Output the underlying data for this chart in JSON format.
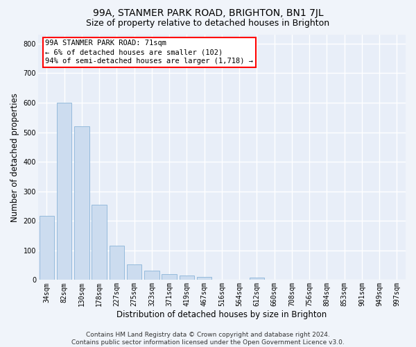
{
  "title": "99A, STANMER PARK ROAD, BRIGHTON, BN1 7JL",
  "subtitle": "Size of property relative to detached houses in Brighton",
  "xlabel": "Distribution of detached houses by size in Brighton",
  "ylabel": "Number of detached properties",
  "bar_color": "#ccdcef",
  "bar_edge_color": "#8ab4d8",
  "background_color": "#e8eef8",
  "grid_color": "#d0d8e8",
  "bins": [
    "34sqm",
    "82sqm",
    "130sqm",
    "178sqm",
    "227sqm",
    "275sqm",
    "323sqm",
    "371sqm",
    "419sqm",
    "467sqm",
    "516sqm",
    "564sqm",
    "612sqm",
    "660sqm",
    "708sqm",
    "756sqm",
    "804sqm",
    "853sqm",
    "901sqm",
    "949sqm",
    "997sqm"
  ],
  "values": [
    218,
    600,
    520,
    255,
    115,
    53,
    31,
    20,
    16,
    10,
    0,
    0,
    9,
    0,
    0,
    0,
    0,
    0,
    0,
    0,
    0
  ],
  "ylim": [
    0,
    830
  ],
  "yticks": [
    0,
    100,
    200,
    300,
    400,
    500,
    600,
    700,
    800
  ],
  "annotation_text": "99A STANMER PARK ROAD: 71sqm\n← 6% of detached houses are smaller (102)\n94% of semi-detached houses are larger (1,718) →",
  "property_sqm": 71,
  "footnote": "Contains HM Land Registry data © Crown copyright and database right 2024.\nContains public sector information licensed under the Open Government Licence v3.0.",
  "title_fontsize": 10,
  "subtitle_fontsize": 9,
  "xlabel_fontsize": 8.5,
  "ylabel_fontsize": 8.5,
  "tick_fontsize": 7,
  "annotation_fontsize": 7.5,
  "footnote_fontsize": 6.5
}
